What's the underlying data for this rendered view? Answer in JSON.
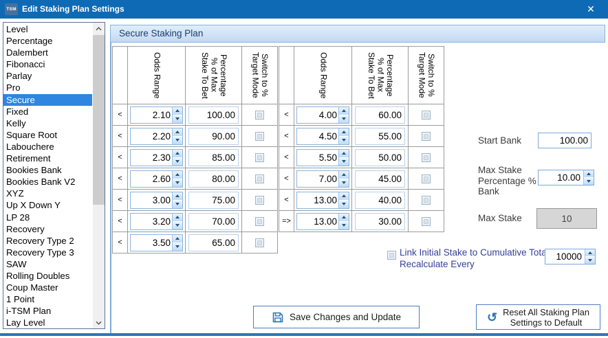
{
  "window": {
    "icon_text": "TSM",
    "title": "Edit Staking Plan Settings"
  },
  "icons": {
    "app": "tsm-logo",
    "close_glyph": "✕",
    "save": "floppy-disk",
    "reset_glyph": "↺",
    "scroll_up": "chevron-up",
    "scroll_down": "chevron-down"
  },
  "colors": {
    "titlebar": "#0f6ab5",
    "selection": "#2e86e0",
    "panel_header_text": "#1c3d6e",
    "accent_border": "#4e7dbd",
    "icon_blue": "#2e74b5",
    "link_label": "#333f99",
    "bottom_border": "#2e75b6"
  },
  "sidebar": {
    "selected": "Secure",
    "items": [
      "Level",
      "Percentage",
      "Dalembert",
      "Fibonacci",
      "Parlay",
      "Pro",
      "Secure",
      "Fixed",
      "Kelly",
      "Square Root",
      "Labouchere",
      "Retirement",
      "Bookies Bank",
      "Bookies Bank V2",
      "XYZ",
      "Up X Down Y",
      "LP 28",
      "Recovery",
      "Recovery Type 2",
      "Recovery Type 3",
      "SAW",
      "Rolling Doubles",
      "Coup Master",
      "1 Point",
      "i-TSM Plan",
      "Lay Level"
    ]
  },
  "main": {
    "header": "Secure Staking Plan",
    "columns": {
      "odds": "Odds Range",
      "pct": "Percentage\n% of Max\nStake To Bet",
      "switch": "Switch to %\nTarget Mode"
    },
    "tables": [
      {
        "rows": [
          {
            "op": "<",
            "odds": "2.10",
            "pct": "100.00",
            "checked": false
          },
          {
            "op": "<",
            "odds": "2.20",
            "pct": "90.00",
            "checked": false
          },
          {
            "op": "<",
            "odds": "2.30",
            "pct": "85.00",
            "checked": false
          },
          {
            "op": "<",
            "odds": "2.60",
            "pct": "80.00",
            "checked": false
          },
          {
            "op": "<",
            "odds": "3.00",
            "pct": "75.00",
            "checked": false
          },
          {
            "op": "<",
            "odds": "3.20",
            "pct": "70.00",
            "checked": false
          },
          {
            "op": "<",
            "odds": "3.50",
            "pct": "65.00",
            "checked": false
          }
        ]
      },
      {
        "rows": [
          {
            "op": "<",
            "odds": "4.00",
            "pct": "60.00",
            "checked": false
          },
          {
            "op": "<",
            "odds": "4.50",
            "pct": "55.00",
            "checked": false
          },
          {
            "op": "<",
            "odds": "5.50",
            "pct": "50.00",
            "checked": false
          },
          {
            "op": "<",
            "odds": "7.00",
            "pct": "45.00",
            "checked": false
          },
          {
            "op": "<",
            "odds": "13.00",
            "pct": "40.00",
            "checked": false
          },
          {
            "op": "=>",
            "odds": "13.00",
            "pct": "30.00",
            "checked": false
          }
        ]
      }
    ],
    "fields": {
      "start_bank": {
        "label": "Start Bank",
        "value": "100.00"
      },
      "max_stake_pct": {
        "label": "Max Stake\nPercentage % of Start\nBank",
        "value": "10.00"
      },
      "max_stake": {
        "label": "Max Stake",
        "value": "10"
      },
      "link": {
        "label": "Link Initial Stake to Cumulative Total OR\nRecalculate Every",
        "value": "10000",
        "checked": false
      }
    },
    "buttons": {
      "save": "Save Changes and Update",
      "reset": "Reset All Staking Plan\nSettings to Default"
    }
  }
}
